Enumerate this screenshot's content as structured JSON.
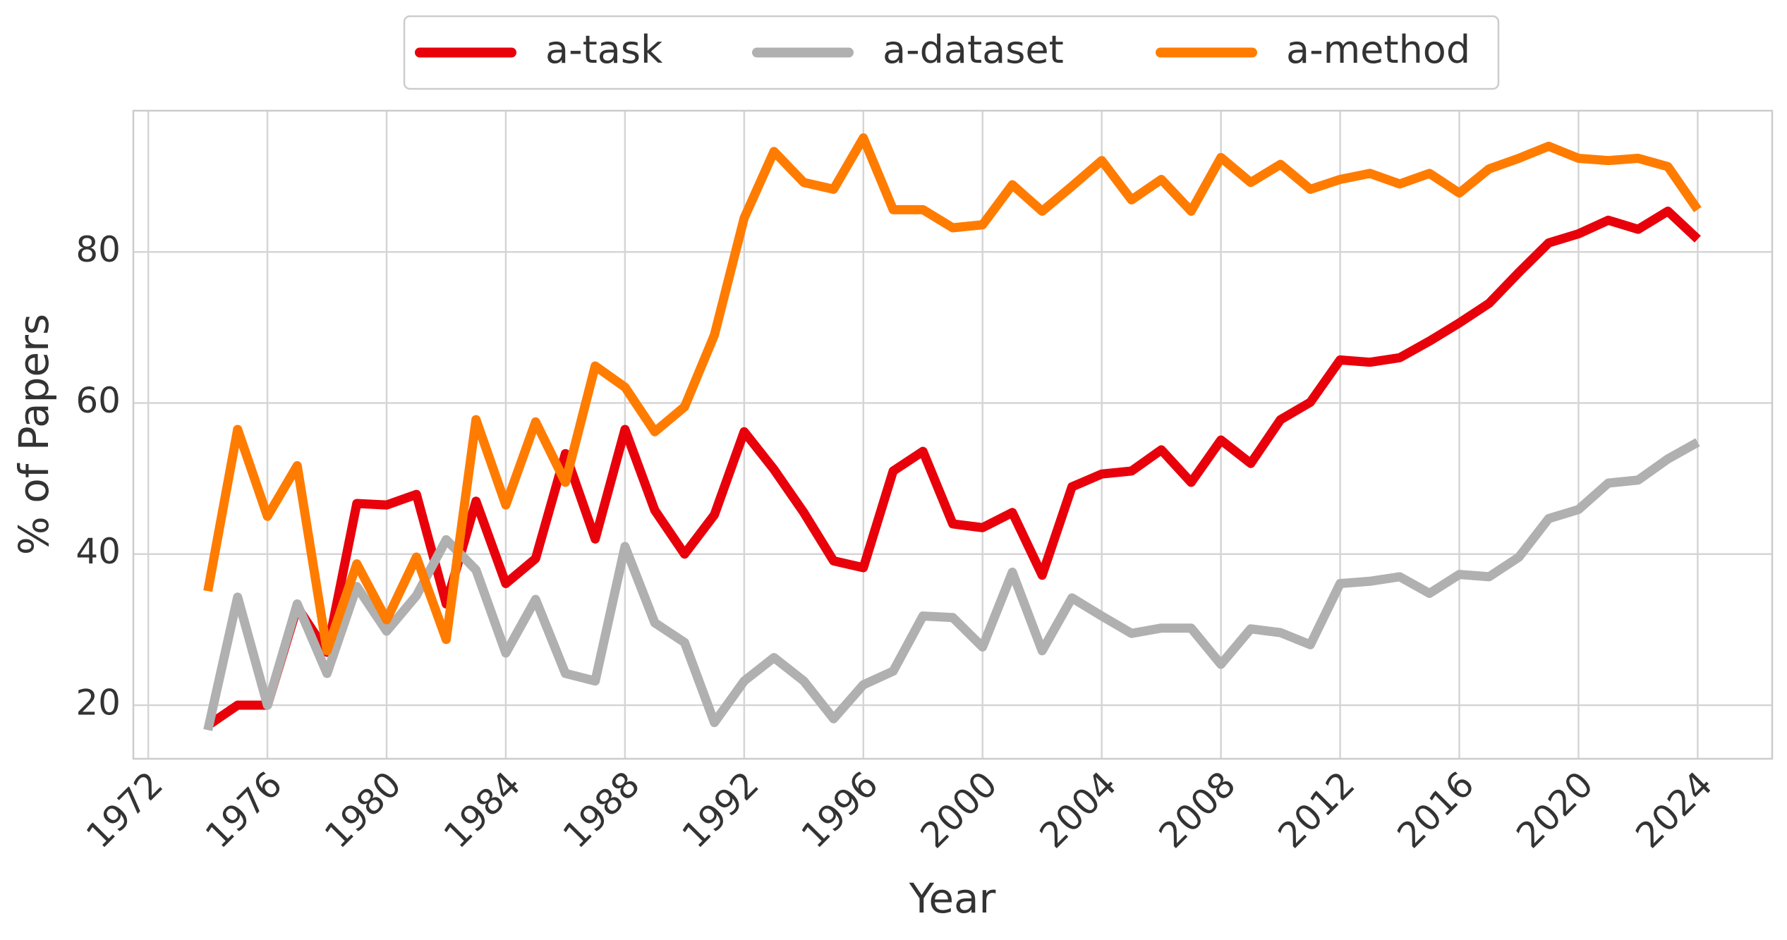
{
  "chart_data": {
    "type": "line",
    "x_label": "Year",
    "y_label": "% of Papers",
    "x": [
      1974,
      1975,
      1976,
      1977,
      1978,
      1979,
      1980,
      1981,
      1982,
      1983,
      1984,
      1985,
      1986,
      1987,
      1988,
      1989,
      1990,
      1991,
      1992,
      1993,
      1994,
      1995,
      1996,
      1997,
      1998,
      1999,
      2000,
      2001,
      2002,
      2003,
      2004,
      2005,
      2006,
      2007,
      2008,
      2009,
      2010,
      2011,
      2012,
      2013,
      2014,
      2015,
      2016,
      2017,
      2018,
      2019,
      2020,
      2021,
      2022,
      2023,
      2024
    ],
    "series": [
      {
        "name": "a-task",
        "color": "#e8000b",
        "values": [
          17.3,
          20,
          20,
          33,
          27,
          46.7,
          46.5,
          47.9,
          33.4,
          47,
          36.1,
          39.4,
          53.3,
          42,
          56.5,
          45.8,
          40,
          45.2,
          56.2,
          51.2,
          45.5,
          39.1,
          38.2,
          51,
          53.6,
          44,
          43.5,
          45.5,
          37.2,
          48.9,
          50.6,
          51,
          53.8,
          49.5,
          55.1,
          52,
          57.8,
          60.1,
          65.7,
          65.4,
          66,
          68.2,
          70.6,
          73.2,
          77.3,
          81.2,
          82.4,
          84.2,
          83,
          85.4,
          81.7
        ]
      },
      {
        "name": "a-dataset",
        "color": "#b0b0b0",
        "values": [
          16.7,
          34.3,
          20,
          33.4,
          24.2,
          35.7,
          29.8,
          34.5,
          41.9,
          37.9,
          26.9,
          34,
          24.2,
          23.2,
          41,
          30.9,
          28.3,
          17.7,
          23.2,
          26.3,
          23.2,
          18.2,
          22.7,
          24.5,
          31.8,
          31.6,
          27.7,
          37.6,
          27.2,
          34.2,
          31.8,
          29.5,
          30.2,
          30.2,
          25.4,
          30.1,
          29.6,
          28,
          36.1,
          36.4,
          37,
          34.8,
          37.3,
          37,
          39.6,
          44.7,
          45.9,
          49.4,
          49.8,
          52.6,
          54.8
        ]
      },
      {
        "name": "a-method",
        "color": "#ff7c00",
        "values": [
          35.1,
          56.5,
          45,
          51.7,
          27.2,
          38.7,
          31.3,
          39.6,
          28.7,
          57.8,
          46.5,
          57.5,
          49.5,
          64.9,
          62.1,
          56.2,
          59.5,
          69,
          84.5,
          93.3,
          89.2,
          88.3,
          95.1,
          85.6,
          85.6,
          83.2,
          83.6,
          88.9,
          85.4,
          88.7,
          92.1,
          86.9,
          89.6,
          85.4,
          92.5,
          89.2,
          91.6,
          88.3,
          89.6,
          90.4,
          89,
          90.4,
          87.8,
          91,
          92.4,
          94,
          92.4,
          92.1,
          92.4,
          91.3,
          85.6
        ]
      }
    ],
    "xlim": [
      1971.5,
      2026.5
    ],
    "ylim": [
      12.9,
      98.7
    ],
    "xticks": [
      1972,
      1976,
      1980,
      1984,
      1988,
      1992,
      1996,
      2000,
      2004,
      2008,
      2012,
      2016,
      2020,
      2024
    ],
    "yticks": [
      20,
      40,
      60,
      80
    ],
    "grid": true,
    "legend": "upper center"
  }
}
